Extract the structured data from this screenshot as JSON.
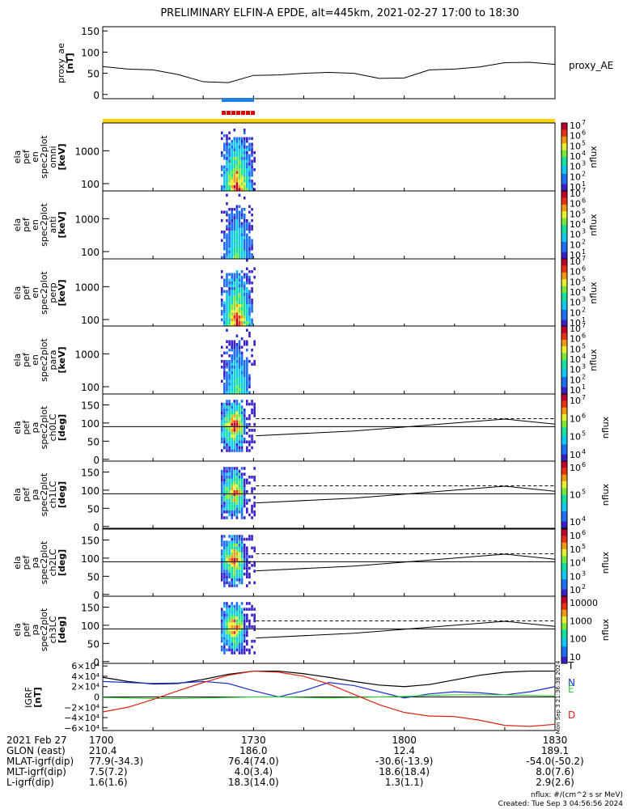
{
  "title": "PRELIMINARY ELFIN-A EPDE, alt=445km, 2021-02-27 17:00 to 18:30",
  "colors": {
    "bar_blue": "#1e7fe0",
    "bar_red": "#e00000",
    "bar_yellow": "#ffd200",
    "line_black": "#000000",
    "igrf_T": "#000000",
    "igrf_N": "#1a2fd0",
    "igrf_E": "#33cc33",
    "igrf_D": "#e02010"
  },
  "panels": {
    "proxy_ae": {
      "ylabel": "proxy_ae\n[nT]",
      "ticks": [
        "150",
        "100",
        "50",
        "0"
      ],
      "legend": "proxy_AE"
    },
    "spec_energy": [
      {
        "ylabel": "ela\npef\nen\nspec2plot\nomni\n[keV]",
        "ticks": [
          "1000",
          "100"
        ],
        "cbar_ticks": [
          "10",
          "10",
          "10",
          "10",
          "10",
          "10",
          "10"
        ],
        "cbar_exps": [
          "7",
          "6",
          "5",
          "4",
          "3",
          "2",
          "1"
        ],
        "cbar_label": "nflux"
      },
      {
        "ylabel": "ela\npef\nen\nspec2plot\nanti\n[keV]",
        "ticks": [
          "1000",
          "100"
        ],
        "cbar_ticks": [
          "10",
          "10",
          "10",
          "10",
          "10",
          "10",
          "10"
        ],
        "cbar_exps": [
          "7",
          "6",
          "5",
          "4",
          "3",
          "2",
          "1"
        ],
        "cbar_label": "nflux"
      },
      {
        "ylabel": "ela\npef\nen\nspec2plot\nperp\n[keV]",
        "ticks": [
          "1000",
          "100"
        ],
        "cbar_ticks": [
          "10",
          "10",
          "10",
          "10",
          "10",
          "10",
          "10"
        ],
        "cbar_exps": [
          "7",
          "6",
          "5",
          "4",
          "3",
          "2",
          "1"
        ],
        "cbar_label": "nflux"
      },
      {
        "ylabel": "ela\npef\nen\nspec2plot\npara\n[keV]",
        "ticks": [
          "1000",
          "100"
        ],
        "cbar_ticks": [
          "10",
          "10",
          "10",
          "10",
          "10",
          "10",
          "10"
        ],
        "cbar_exps": [
          "7",
          "6",
          "5",
          "4",
          "3",
          "2",
          "1"
        ],
        "cbar_label": "nflux"
      }
    ],
    "spec_pitch": [
      {
        "ylabel": "ela\npef\npa\nspec2plot\nch0LC\n[deg]",
        "ticks": [
          "150",
          "100",
          "50",
          "0"
        ],
        "cbar_ticks": [
          "10",
          "10",
          "10",
          "10"
        ],
        "cbar_exps": [
          "7",
          "6",
          "5",
          "4"
        ],
        "cbar_label": "nflux"
      },
      {
        "ylabel": "ela\npef\npa\nspec2plot\nch1LC\n[deg]",
        "ticks": [
          "150",
          "100",
          "50",
          "0"
        ],
        "cbar_ticks": [
          "10",
          "10",
          "10"
        ],
        "cbar_exps": [
          "6",
          "5",
          "4"
        ],
        "cbar_label": "nflux"
      },
      {
        "ylabel": "ela\npef\npa\nspec2plot\nch2LC\n[deg]",
        "ticks": [
          "150",
          "100",
          "50",
          "0"
        ],
        "cbar_ticks": [
          "10",
          "10",
          "10",
          "10",
          "10"
        ],
        "cbar_exps": [
          "6",
          "5",
          "4",
          "3",
          "2"
        ],
        "cbar_label": "nflux"
      },
      {
        "ylabel": "ela\npef\npa\nspec2plot\nch3LC\n[deg]",
        "ticks": [
          "150",
          "100",
          "50",
          "0"
        ],
        "cbar_ticks": [
          "10000",
          "1000",
          "100",
          "10"
        ],
        "cbar_exps": [
          "",
          "",
          "",
          ""
        ],
        "cbar_label": "nflux"
      }
    ],
    "igrf": {
      "ylabel": "IGRF\n[nT]",
      "ticks": [
        "6×10⁴",
        "4×10⁴",
        "2×10⁴",
        "0",
        "−2×10⁴",
        "−4×10⁴",
        "−6×10⁴"
      ],
      "legend": [
        "T",
        "N",
        "E",
        "D"
      ],
      "side_note": "Mon Sep 3 21:36:38 2024"
    }
  },
  "chart_data": [
    {
      "type": "line",
      "title": "",
      "ylabel": "proxy_ae [nT]",
      "ylim": [
        -10,
        160
      ],
      "x_minutes": [
        0,
        5,
        10,
        15,
        20,
        25,
        30,
        35,
        40,
        45,
        50,
        55,
        60,
        65,
        70,
        75,
        80,
        85,
        90
      ],
      "series": [
        {
          "name": "proxy_AE",
          "values": [
            66,
            60,
            58,
            47,
            30,
            28,
            45,
            46,
            50,
            52,
            50,
            38,
            39,
            58,
            60,
            65,
            75,
            76,
            71
          ]
        }
      ]
    },
    {
      "type": "heatmap",
      "ylabel": "[keV]",
      "scale": "log",
      "ylim": [
        60,
        7000
      ],
      "time_range": [
        "17:23",
        "17:30"
      ]
    },
    {
      "type": "heatmap",
      "ylabel": "[keV]",
      "scale": "log",
      "ylim": [
        60,
        7000
      ],
      "time_range": [
        "17:23",
        "17:30"
      ]
    },
    {
      "type": "heatmap",
      "ylabel": "[keV]",
      "scale": "log",
      "ylim": [
        60,
        7000
      ],
      "time_range": [
        "17:23",
        "17:30"
      ]
    },
    {
      "type": "heatmap",
      "ylabel": "[keV]",
      "scale": "log",
      "ylim": [
        60,
        7000
      ],
      "time_range": [
        "17:23",
        "17:30"
      ]
    },
    {
      "type": "heatmap",
      "ylabel": "[deg]",
      "ylim": [
        0,
        180
      ],
      "time_range": [
        "17:23",
        "17:30"
      ],
      "ref_line": 90
    },
    {
      "type": "heatmap",
      "ylabel": "[deg]",
      "ylim": [
        0,
        180
      ],
      "time_range": [
        "17:23",
        "17:30"
      ],
      "ref_line": 90
    },
    {
      "type": "heatmap",
      "ylabel": "[deg]",
      "ylim": [
        0,
        180
      ],
      "time_range": [
        "17:23",
        "17:30"
      ],
      "ref_line": 90
    },
    {
      "type": "heatmap",
      "ylabel": "[deg]",
      "ylim": [
        0,
        180
      ],
      "time_range": [
        "17:23",
        "17:30"
      ],
      "ref_line": 90
    },
    {
      "type": "line",
      "ylabel": "IGRF [nT]",
      "ylim": [
        -65000,
        65000
      ],
      "x_minutes": [
        0,
        5,
        10,
        15,
        20,
        25,
        30,
        35,
        40,
        45,
        50,
        55,
        60,
        65,
        70,
        75,
        80,
        85,
        90
      ],
      "series": [
        {
          "name": "T",
          "values": [
            38000,
            30000,
            25000,
            26000,
            34000,
            44000,
            50000,
            50000,
            45000,
            38000,
            30000,
            23000,
            20000,
            24000,
            33000,
            42000,
            48000,
            50000,
            50000
          ]
        },
        {
          "name": "N",
          "values": [
            30000,
            28000,
            26000,
            27000,
            30000,
            26000,
            12000,
            0,
            12000,
            28000,
            22000,
            10000,
            -2000,
            6000,
            10000,
            8000,
            4000,
            10000,
            20000
          ]
        },
        {
          "name": "E",
          "values": [
            -1000,
            -2000,
            -3000,
            -3000,
            -2000,
            -1000,
            0,
            0,
            -1000,
            -2000,
            -1000,
            0,
            1000,
            3000,
            4000,
            4000,
            4000,
            3000,
            2000
          ]
        },
        {
          "name": "D",
          "values": [
            -29000,
            -20000,
            -5000,
            12000,
            28000,
            42000,
            50000,
            48000,
            40000,
            25000,
            5000,
            -15000,
            -30000,
            -37000,
            -38000,
            -45000,
            -55000,
            -57000,
            -53000
          ]
        }
      ]
    }
  ],
  "time_axis": {
    "row_labels": [
      "2021 Feb 27",
      "GLON (east)",
      "MLAT-igrf(dip)",
      "MLT-igrf(dip)",
      "L-igrf(dip)"
    ],
    "columns": [
      {
        "time": "1700",
        "glon": "210.4",
        "mlat": "77.9(-34.3)",
        "mlt": "7.5(7.2)",
        "l": "1.6(1.6)"
      },
      {
        "time": "1730",
        "glon": "186.0",
        "mlat": "76.4(74.0)",
        "mlt": "4.0(3.4)",
        "l": "18.3(14.0)"
      },
      {
        "time": "1800",
        "glon": "12.4",
        "mlat": "-30.6(-13.9)",
        "mlt": "18.6(18.4)",
        "l": "1.3(1.1)"
      },
      {
        "time": "1830",
        "glon": "189.1",
        "mlat": "-54.0(-50.2)",
        "mlt": "8.0(7.6)",
        "l": "2.9(2.6)"
      }
    ]
  },
  "footer": {
    "units": "nflux: #/(cm^2 s sr MeV)",
    "created": "Created: Tue Sep  3 04:56:56 2024"
  }
}
